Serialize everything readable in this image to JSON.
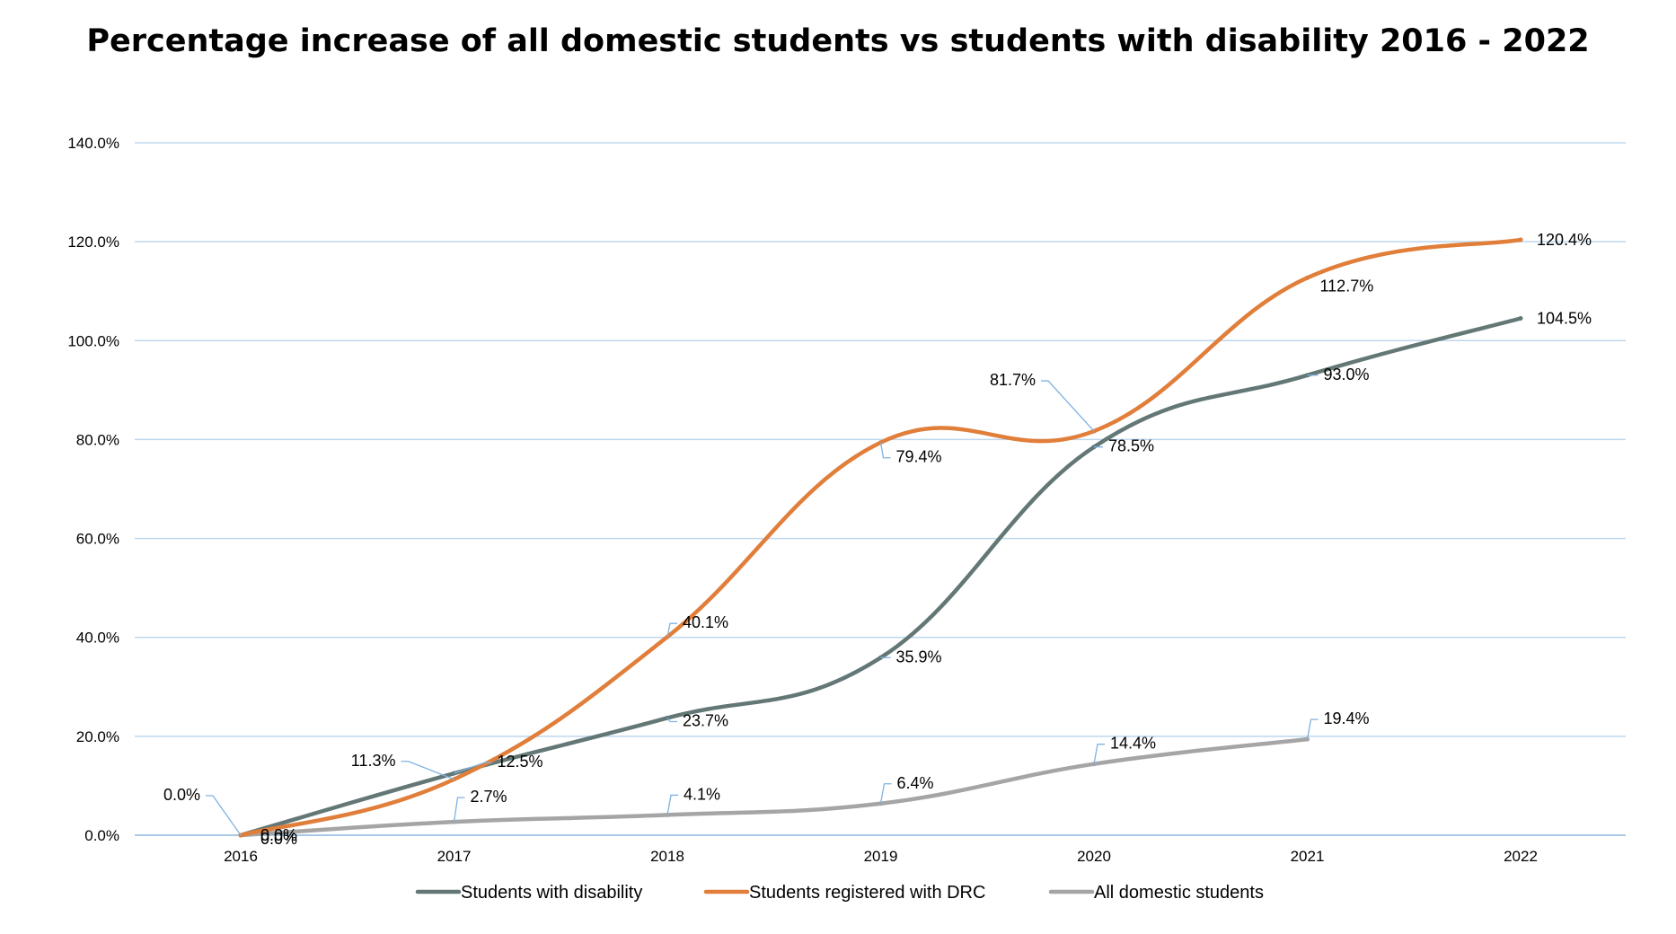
{
  "chart_data": {
    "type": "line",
    "title": "Percentage increase of all domestic students vs students with disability 2016 - 2022",
    "categories": [
      "2016",
      "2017",
      "2018",
      "2019",
      "2020",
      "2021",
      "2022"
    ],
    "ylim": [
      0,
      140
    ],
    "yticks": [
      0,
      20,
      40,
      60,
      80,
      100,
      120,
      140
    ],
    "ytick_labels": [
      "0.0%",
      "20.0%",
      "40.0%",
      "60.0%",
      "80.0%",
      "100.0%",
      "120.0%",
      "140.0%"
    ],
    "grid": true,
    "legend_position": "bottom",
    "series": [
      {
        "name": "Students with disability",
        "color": "#637876",
        "values": [
          0,
          12.5,
          23.7,
          35.9,
          78.5,
          93.0,
          104.5
        ],
        "labels": [
          "0.0%",
          "12.5%",
          "23.7%",
          "35.9%",
          "78.5%",
          "93.0%",
          "104.5%"
        ]
      },
      {
        "name": "Students registered with DRC",
        "color": "#E07E3A",
        "values": [
          0,
          11.3,
          40.1,
          79.4,
          81.7,
          112.7,
          120.4
        ],
        "labels": [
          "0.0%",
          "11.3%",
          "40.1%",
          "79.4%",
          "81.7%",
          "112.7%",
          "120.4%"
        ]
      },
      {
        "name": "All domestic students",
        "color": "#A5A5A5",
        "values": [
          0,
          2.7,
          4.1,
          6.4,
          14.4,
          19.4,
          null
        ],
        "labels": [
          "0.0%",
          "2.7%",
          "4.1%",
          "6.4%",
          "14.4%",
          "19.4%",
          ""
        ]
      }
    ]
  }
}
